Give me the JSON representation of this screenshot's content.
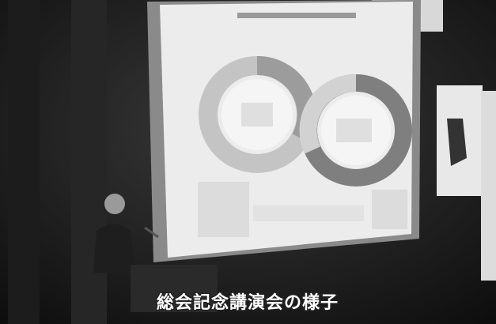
{
  "caption": "総会記念講演会の様子"
}
